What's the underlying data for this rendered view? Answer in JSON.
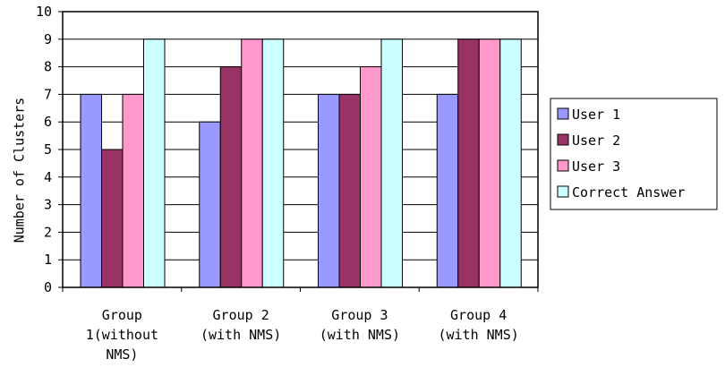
{
  "chart_data": {
    "type": "bar",
    "title": "",
    "xlabel": "",
    "ylabel": "Number of Clusters",
    "ylim": [
      0,
      10
    ],
    "yticks": [
      "0",
      "1",
      "2",
      "3",
      "4",
      "5",
      "6",
      "7",
      "8",
      "9",
      "10"
    ],
    "grid": true,
    "legend_position": "right",
    "categories": [
      [
        "Group",
        "1(without",
        "NMS)"
      ],
      [
        "Group 2",
        "(with NMS)"
      ],
      [
        "Group 3",
        "(with NMS)"
      ],
      [
        "Group 4",
        "(with NMS)"
      ]
    ],
    "series": [
      {
        "name": "User 1",
        "color": "#9999ff",
        "values": [
          7,
          6,
          7,
          7
        ]
      },
      {
        "name": "User 2",
        "color": "#993366",
        "values": [
          5,
          8,
          7,
          9
        ]
      },
      {
        "name": "User 3",
        "color": "#ff99cc",
        "values": [
          7,
          9,
          8,
          9
        ]
      },
      {
        "name": "Correct Answer",
        "color": "#ccffff",
        "values": [
          9,
          9,
          9,
          9
        ]
      }
    ]
  }
}
